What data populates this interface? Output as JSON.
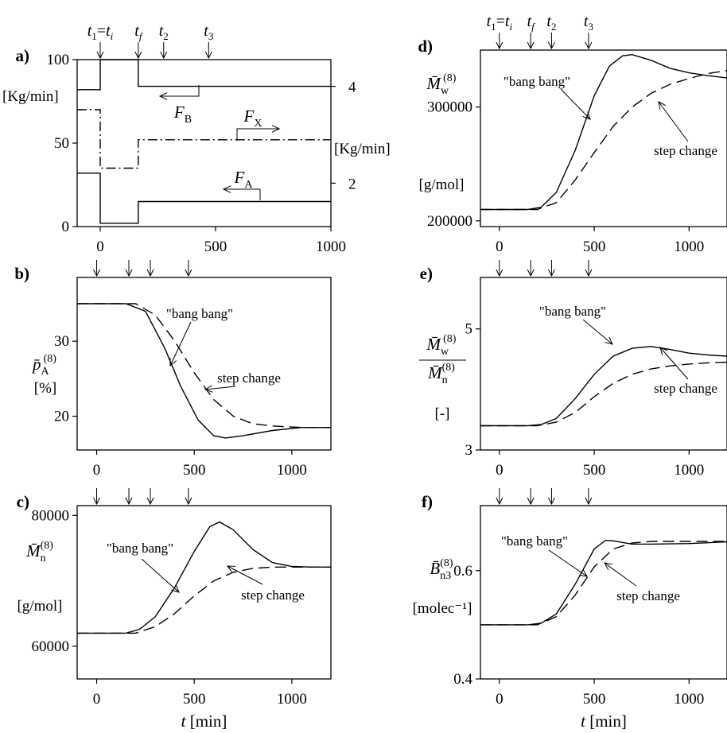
{
  "time_markers": {
    "labels": [
      "t1=ti",
      "tf",
      "t2",
      "t3"
    ],
    "values": [
      0,
      165,
      275,
      470
    ]
  },
  "x_axis_label": "t [min]",
  "chart_data": [
    {
      "id": "a",
      "panel_label": "a)",
      "type": "line",
      "xlim": [
        -100,
        1000
      ],
      "ylim": [
        0,
        100
      ],
      "xticks": [
        0,
        500,
        1000
      ],
      "yticks": [
        0,
        50,
        100
      ],
      "ylabel_left": "[Kg/min]",
      "y2ticks": [
        2,
        4
      ],
      "y2tick_positions": [
        26,
        84
      ],
      "ylabel_right": "[Kg/min]",
      "ticks_on_top": true,
      "series": [
        {
          "name": "F_B",
          "style": "solid",
          "points": [
            [
              -100,
              82
            ],
            [
              0,
              82
            ],
            [
              0,
              100
            ],
            [
              165,
              100
            ],
            [
              165,
              84
            ],
            [
              1000,
              84
            ]
          ]
        },
        {
          "name": "F_X",
          "style": "dashdot",
          "points": [
            [
              -100,
              70
            ],
            [
              0,
              70
            ],
            [
              0,
              35
            ],
            [
              165,
              35
            ],
            [
              165,
              52
            ],
            [
              1000,
              52
            ]
          ]
        },
        {
          "name": "F_A",
          "style": "solid",
          "points": [
            [
              -100,
              32
            ],
            [
              0,
              32
            ],
            [
              0,
              2
            ],
            [
              165,
              2
            ],
            [
              165,
              15
            ],
            [
              1000,
              15
            ]
          ]
        }
      ],
      "annotations": [
        {
          "text": "F_B",
          "arrow": "left"
        },
        {
          "text": "F_X",
          "arrow": "right"
        },
        {
          "text": "F_A",
          "arrow": "left"
        }
      ]
    },
    {
      "id": "b",
      "panel_label": "b)",
      "type": "line",
      "xlim": [
        -100,
        1200
      ],
      "ylim": [
        15.5,
        38.5
      ],
      "xticks": [
        0,
        500,
        1000
      ],
      "yticks": [
        20,
        30
      ],
      "ylabel": "p̄_A^(8)",
      "yunit": "[%]",
      "series": [
        {
          "name": "\"bang bang\"",
          "style": "solid",
          "points": [
            [
              -100,
              35
            ],
            [
              150,
              35
            ],
            [
              250,
              34
            ],
            [
              350,
              29
            ],
            [
              430,
              24
            ],
            [
              520,
              19.5
            ],
            [
              600,
              17.4
            ],
            [
              660,
              17.1
            ],
            [
              750,
              17.4
            ],
            [
              900,
              18.1
            ],
            [
              1050,
              18.5
            ],
            [
              1200,
              18.5
            ]
          ]
        },
        {
          "name": "step change",
          "style": "dashed",
          "points": [
            [
              -100,
              35
            ],
            [
              200,
              35
            ],
            [
              300,
              33.5
            ],
            [
              400,
              30
            ],
            [
              500,
              25.8
            ],
            [
              600,
              22.2
            ],
            [
              700,
              20
            ],
            [
              800,
              19
            ],
            [
              900,
              18.7
            ],
            [
              1050,
              18.5
            ],
            [
              1200,
              18.5
            ]
          ]
        }
      ],
      "labels": [
        "\"bang bang\"",
        "step change"
      ]
    },
    {
      "id": "c",
      "panel_label": "c)",
      "type": "line",
      "xlim": [
        -100,
        1200
      ],
      "ylim": [
        55000,
        81500
      ],
      "xticks": [
        0,
        500,
        1000
      ],
      "yticks": [
        60000,
        80000
      ],
      "ylabel": "M̄_n^(8)",
      "yunit": "[g/mol]",
      "series": [
        {
          "name": "\"bang bang\"",
          "style": "solid",
          "points": [
            [
              -100,
              62000
            ],
            [
              150,
              62000
            ],
            [
              220,
              62600
            ],
            [
              300,
              64500
            ],
            [
              400,
              69000
            ],
            [
              500,
              74500
            ],
            [
              580,
              78300
            ],
            [
              630,
              79000
            ],
            [
              700,
              77800
            ],
            [
              800,
              74800
            ],
            [
              900,
              72800
            ],
            [
              1000,
              72200
            ],
            [
              1100,
              72100
            ],
            [
              1200,
              72100
            ]
          ]
        },
        {
          "name": "step change",
          "style": "dashed",
          "points": [
            [
              -100,
              62000
            ],
            [
              200,
              62000
            ],
            [
              300,
              63000
            ],
            [
              400,
              65000
            ],
            [
              500,
              67700
            ],
            [
              600,
              70000
            ],
            [
              700,
              71300
            ],
            [
              800,
              71900
            ],
            [
              900,
              72100
            ],
            [
              1000,
              72100
            ],
            [
              1200,
              72100
            ]
          ]
        }
      ],
      "labels": [
        "\"bang bang\"",
        "step change"
      ]
    },
    {
      "id": "d",
      "panel_label": "d)",
      "type": "line",
      "xlim": [
        -100,
        1200
      ],
      "ylim": [
        195000,
        350000
      ],
      "xticks": [
        0,
        500,
        1000
      ],
      "yticks": [
        200000,
        300000
      ],
      "ylabel": "M̄_w^(8)",
      "yunit": "[g/mol]",
      "ticks_on_top": true,
      "series": [
        {
          "name": "\"bang bang\"",
          "style": "solid",
          "points": [
            [
              -100,
              210000
            ],
            [
              150,
              210000
            ],
            [
              220,
              212000
            ],
            [
              300,
              225000
            ],
            [
              400,
              262000
            ],
            [
              500,
              310000
            ],
            [
              580,
              336000
            ],
            [
              650,
              345000
            ],
            [
              700,
              346000
            ],
            [
              800,
              341000
            ],
            [
              900,
              334000
            ],
            [
              1000,
              330000
            ],
            [
              1100,
              327500
            ],
            [
              1200,
              325500
            ]
          ]
        },
        {
          "name": "step change",
          "style": "dashed",
          "points": [
            [
              -100,
              210000
            ],
            [
              200,
              210000
            ],
            [
              300,
              216000
            ],
            [
              400,
              236000
            ],
            [
              500,
              260000
            ],
            [
              600,
              283000
            ],
            [
              700,
              300000
            ],
            [
              800,
              312000
            ],
            [
              900,
              320000
            ],
            [
              1000,
              325000
            ],
            [
              1100,
              329500
            ],
            [
              1200,
              332000
            ]
          ]
        }
      ],
      "labels": [
        "\"bang bang\"",
        "step change"
      ]
    },
    {
      "id": "e",
      "panel_label": "e)",
      "type": "line",
      "xlim": [
        -100,
        1200
      ],
      "ylim": [
        3,
        5.85
      ],
      "xticks": [
        0,
        500,
        1000
      ],
      "yticks": [
        3,
        5
      ],
      "ylabel_num": "M̄_w^(8)",
      "ylabel_den": "M̄_n^(8)",
      "yunit": "[-]",
      "series": [
        {
          "name": "\"bang bang\"",
          "style": "solid",
          "points": [
            [
              -100,
              3.4
            ],
            [
              150,
              3.4
            ],
            [
              220,
              3.42
            ],
            [
              300,
              3.52
            ],
            [
              400,
              3.85
            ],
            [
              500,
              4.25
            ],
            [
              600,
              4.55
            ],
            [
              700,
              4.68
            ],
            [
              800,
              4.71
            ],
            [
              900,
              4.66
            ],
            [
              1000,
              4.6
            ],
            [
              1100,
              4.57
            ],
            [
              1200,
              4.55
            ]
          ]
        },
        {
          "name": "step change",
          "style": "dashed",
          "points": [
            [
              -100,
              3.4
            ],
            [
              200,
              3.4
            ],
            [
              300,
              3.46
            ],
            [
              400,
              3.62
            ],
            [
              500,
              3.88
            ],
            [
              600,
              4.1
            ],
            [
              700,
              4.25
            ],
            [
              800,
              4.34
            ],
            [
              900,
              4.39
            ],
            [
              1000,
              4.42
            ],
            [
              1100,
              4.44
            ],
            [
              1200,
              4.45
            ]
          ]
        }
      ],
      "labels": [
        "\"bang bang\"",
        "step change"
      ]
    },
    {
      "id": "f",
      "panel_label": "f)",
      "type": "line",
      "xlim": [
        -100,
        1200
      ],
      "ylim": [
        0.4,
        0.72
      ],
      "xticks": [
        0,
        500,
        1000
      ],
      "yticks": [
        0.4,
        0.6
      ],
      "ylabel": "B̄_n3^(8)",
      "yunit": "[molec⁻¹]",
      "series": [
        {
          "name": "\"bang bang\"",
          "style": "solid",
          "points": [
            [
              -100,
              0.5
            ],
            [
              150,
              0.5
            ],
            [
              220,
              0.503
            ],
            [
              300,
              0.52
            ],
            [
              400,
              0.575
            ],
            [
              500,
              0.64
            ],
            [
              560,
              0.656
            ],
            [
              600,
              0.655
            ],
            [
              700,
              0.649
            ],
            [
              800,
              0.649
            ],
            [
              1000,
              0.65
            ],
            [
              1200,
              0.653
            ]
          ]
        },
        {
          "name": "step change",
          "style": "dashed",
          "points": [
            [
              -100,
              0.5
            ],
            [
              200,
              0.5
            ],
            [
              300,
              0.515
            ],
            [
              400,
              0.555
            ],
            [
              500,
              0.607
            ],
            [
              600,
              0.64
            ],
            [
              700,
              0.651
            ],
            [
              800,
              0.654
            ],
            [
              1000,
              0.654
            ],
            [
              1200,
              0.654
            ]
          ]
        }
      ],
      "labels": [
        "\"bang bang\"",
        "step change"
      ]
    }
  ]
}
